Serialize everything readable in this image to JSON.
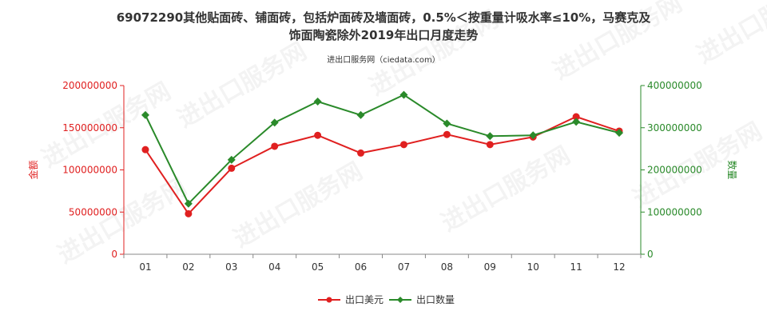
{
  "chart_data": {
    "type": "line",
    "title_line1": "69072290其他贴面砖、铺面砖，包括炉面砖及墙面砖，0.5%＜按重量计吸水率≤10%，马赛克及",
    "title_line2": "饰面陶瓷除外2019年出口月度走势",
    "source": "进出口服务网（ciedata.com）",
    "categories": [
      "01",
      "02",
      "03",
      "04",
      "05",
      "06",
      "07",
      "08",
      "09",
      "10",
      "11",
      "12"
    ],
    "y_left": {
      "label": "金额",
      "ylim": [
        0,
        200000000
      ],
      "ticks": [
        "0",
        "50000000",
        "100000000",
        "150000000",
        "200000000"
      ],
      "color": "#e02020"
    },
    "y_right": {
      "label": "数量",
      "ylim": [
        0,
        400000000
      ],
      "ticks": [
        "0",
        "100000000",
        "200000000",
        "300000000",
        "400000000"
      ],
      "color": "#2a8a2a"
    },
    "series": [
      {
        "name": "出口美元",
        "axis": "left",
        "color": "#e02020",
        "marker": "circle",
        "values": [
          124000000,
          48000000,
          102000000,
          128000000,
          141000000,
          120000000,
          130000000,
          142000000,
          130000000,
          139000000,
          163000000,
          146000000
        ]
      },
      {
        "name": "出口数量",
        "axis": "right",
        "color": "#2a8a2a",
        "marker": "diamond",
        "values": [
          330000000,
          120000000,
          224000000,
          312000000,
          362000000,
          330000000,
          378000000,
          310000000,
          280000000,
          282000000,
          314000000,
          288000000
        ]
      }
    ],
    "grid": false,
    "legend_position": "bottom-center"
  },
  "watermark_text": "进出口服务网"
}
